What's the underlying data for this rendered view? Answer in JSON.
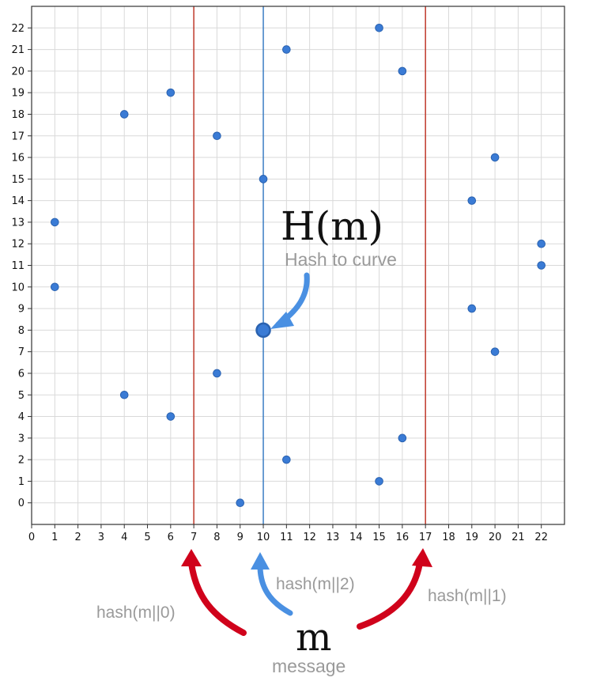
{
  "chart_data": {
    "type": "scatter",
    "title": "",
    "xlabel": "",
    "ylabel": "",
    "xlim": [
      0,
      23
    ],
    "ylim": [
      -1,
      23
    ],
    "grid": true,
    "x_ticks": [
      0,
      1,
      2,
      3,
      4,
      5,
      6,
      7,
      8,
      9,
      10,
      11,
      12,
      13,
      14,
      15,
      16,
      17,
      18,
      19,
      20,
      21,
      22
    ],
    "y_ticks": [
      0,
      1,
      2,
      3,
      4,
      5,
      6,
      7,
      8,
      9,
      10,
      11,
      12,
      13,
      14,
      15,
      16,
      17,
      18,
      19,
      20,
      21,
      22
    ],
    "points": [
      {
        "x": 1,
        "y": 13
      },
      {
        "x": 1,
        "y": 10
      },
      {
        "x": 4,
        "y": 18
      },
      {
        "x": 4,
        "y": 5
      },
      {
        "x": 6,
        "y": 19
      },
      {
        "x": 6,
        "y": 4
      },
      {
        "x": 8,
        "y": 17
      },
      {
        "x": 8,
        "y": 6
      },
      {
        "x": 9,
        "y": 0
      },
      {
        "x": 10,
        "y": 15
      },
      {
        "x": 11,
        "y": 21
      },
      {
        "x": 11,
        "y": 2
      },
      {
        "x": 15,
        "y": 22
      },
      {
        "x": 15,
        "y": 1
      },
      {
        "x": 16,
        "y": 20
      },
      {
        "x": 16,
        "y": 3
      },
      {
        "x": 19,
        "y": 14
      },
      {
        "x": 19,
        "y": 9
      },
      {
        "x": 20,
        "y": 16
      },
      {
        "x": 20,
        "y": 7
      },
      {
        "x": 22,
        "y": 12
      },
      {
        "x": 22,
        "y": 11
      }
    ],
    "highlight_point": {
      "x": 10,
      "y": 8
    },
    "vertical_lines": [
      {
        "x": 7,
        "color": "#c0392b"
      },
      {
        "x": 10,
        "color": "#3b7dc4"
      },
      {
        "x": 17,
        "color": "#c0392b"
      }
    ],
    "annotations": {
      "hash_to_curve_symbol": "H(m)",
      "hash_to_curve_label": "Hash to curve",
      "message_symbol": "m",
      "message_label": "message",
      "hash0_label": "hash(m||0)",
      "hash2_label": "hash(m||2)",
      "hash1_label": "hash(m||1)"
    }
  },
  "colors": {
    "point": "#3a7bd5",
    "point_edge": "#2a62b0",
    "red_line": "#c0392b",
    "blue_line": "#3b7dc4",
    "arrow_red": "#d0021b",
    "arrow_blue": "#4a90e2",
    "grid": "#d9d9d9",
    "axis": "#333333"
  }
}
